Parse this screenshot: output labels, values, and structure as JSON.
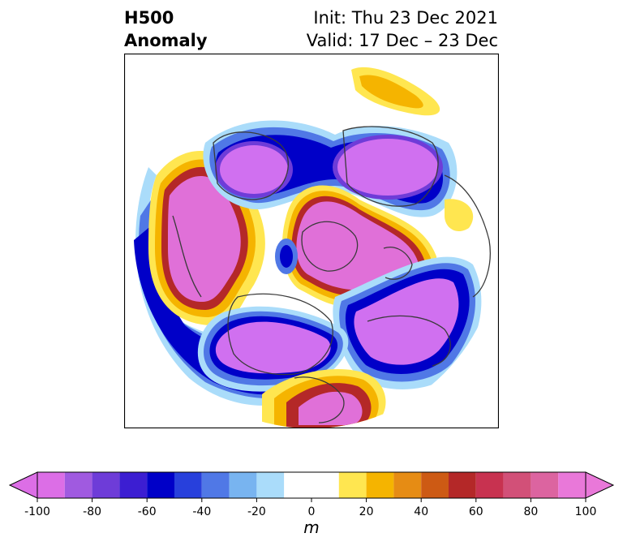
{
  "title": {
    "line1_left": "H500",
    "line2_left": "Anomaly",
    "line1_right": "Init: Thu 23 Dec 2021",
    "line2_right": "Valid: 17 Dec – 23 Dec"
  },
  "colorbar": {
    "unit": "m",
    "ticks": [
      "-100",
      "-80",
      "-60",
      "-40",
      "-20",
      "0",
      "20",
      "40",
      "60",
      "80",
      "100"
    ],
    "levels": [
      -100,
      -90,
      -80,
      -70,
      -60,
      -50,
      -40,
      -30,
      -20,
      -10,
      10,
      20,
      30,
      40,
      50,
      60,
      70,
      80,
      90,
      100
    ],
    "under_color": "#dc6ee6",
    "over_color": "#e978d9",
    "colors": [
      "#dc6ee6",
      "#a05ae0",
      "#6e3cd8",
      "#3c1ed2",
      "#0000c8",
      "#2840dc",
      "#5078e6",
      "#78b4f0",
      "#aadcfa",
      "#ffffff",
      "#ffe650",
      "#f5b400",
      "#e68c14",
      "#cd5a14",
      "#b42828",
      "#c83250",
      "#d25078",
      "#dc64a0",
      "#e978d9"
    ]
  },
  "map": {
    "projection": "north-polar-stereographic",
    "description_colors": {
      "negative_core": "#d070f0",
      "positive_core": "#e070d8",
      "neutral": "#ffffff"
    }
  }
}
